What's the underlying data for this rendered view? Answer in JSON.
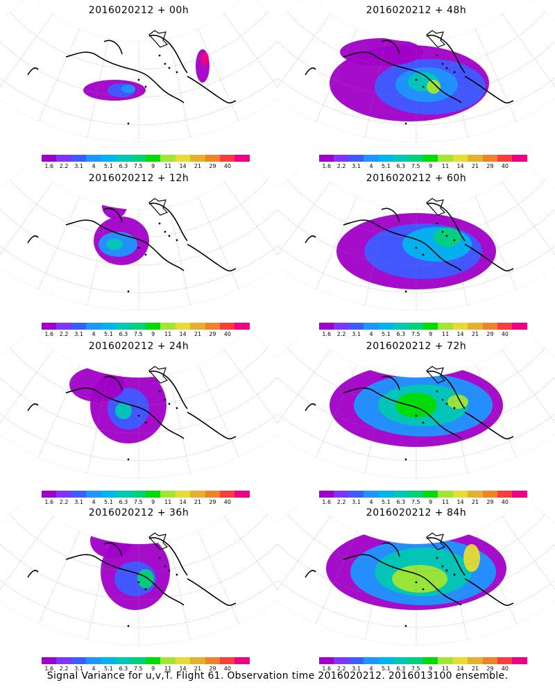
{
  "panels": [
    {
      "title": "2016020212 + 00h"
    },
    {
      "title": "2016020212 + 48h"
    },
    {
      "title": "2016020212 + 12h"
    },
    {
      "title": "2016020212 + 60h"
    },
    {
      "title": "2016020212 + 24h"
    },
    {
      "title": "2016020212 + 72h"
    },
    {
      "title": "2016020212 + 36h"
    },
    {
      "title": "2016020212 + 84h"
    }
  ],
  "colorbar": {
    "labels": [
      "1.6",
      "2.2",
      "3.1",
      "4",
      "5.1",
      "6.3",
      "7.5",
      "9",
      "11",
      "14",
      "21",
      "29",
      "40"
    ],
    "colors": [
      "#a000c8",
      "#7f33ff",
      "#3c5cff",
      "#1e96ff",
      "#00b4f0",
      "#00c8b4",
      "#00d278",
      "#00dc00",
      "#a0e632",
      "#e6dc32",
      "#e6af2d",
      "#f08228",
      "#fa3c3c",
      "#f00082"
    ]
  },
  "footer": "Signal Variance for u,v,T. Flight 61. Observation time 2016020212. 2016013100 ensemble."
}
